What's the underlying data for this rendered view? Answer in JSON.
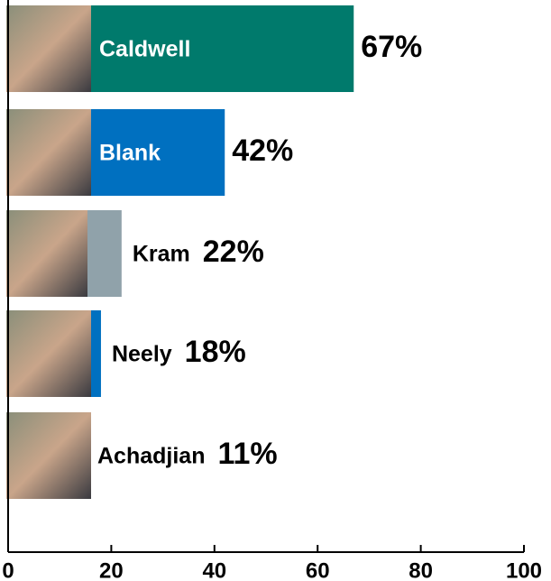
{
  "chart_data": {
    "type": "bar",
    "orientation": "horizontal",
    "categories": [
      "Caldwell",
      "Blank",
      "Kram",
      "Neely",
      "Achadjian"
    ],
    "values": [
      67,
      42,
      22,
      18,
      11
    ],
    "value_labels": [
      "67%",
      "42%",
      "22%",
      "18%",
      "11%"
    ],
    "colors": [
      "#007a6c",
      "#0070c0",
      "#90a2aa",
      "#0070c0",
      "#0070c0"
    ],
    "xlim": [
      0,
      100
    ],
    "xticks": [
      0,
      20,
      40,
      60,
      80,
      100
    ]
  }
}
